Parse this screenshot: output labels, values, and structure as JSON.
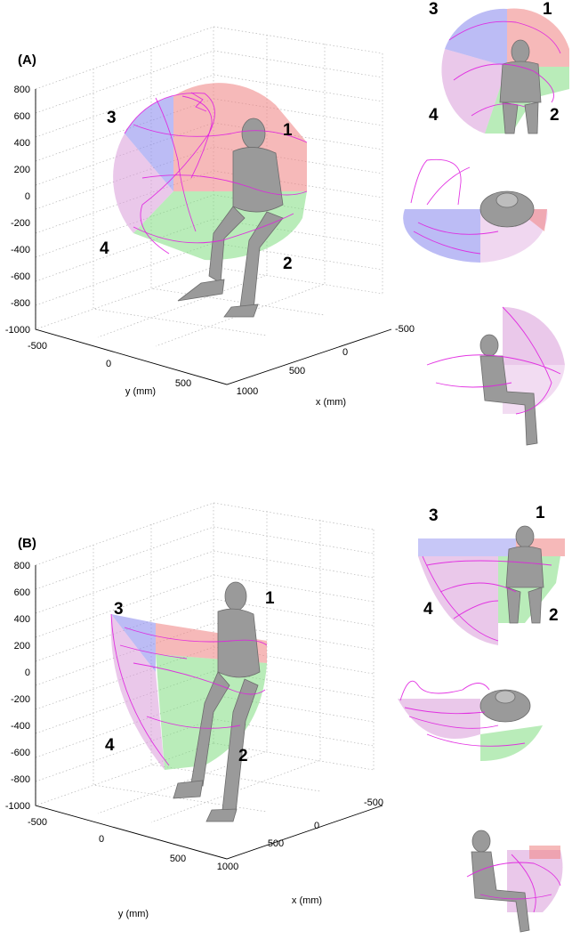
{
  "colors": {
    "quadrant_1": "#f08a8a",
    "quadrant_2": "#7fdc7f",
    "quadrant_3": "#8f8fef",
    "quadrant_4": "#d99ad9",
    "trajectory": "#e020e0",
    "mannequin": "#9a9a9a",
    "grid": "#b5b5b5"
  },
  "panels": [
    {
      "label": "(A)",
      "z_ticks": [
        "800",
        "600",
        "400",
        "200",
        "0",
        "-200",
        "-400",
        "-600",
        "-800",
        "-1000"
      ],
      "y_ticks": [
        "-500",
        "0",
        "500"
      ],
      "x_ticks": [
        "1000",
        "500",
        "0",
        "-500"
      ],
      "y_axis_label": "y (mm)",
      "x_axis_label": "x (mm)",
      "quadrants": [
        "1",
        "2",
        "3",
        "4"
      ],
      "insets": [
        {
          "view": "front",
          "labels": [
            "3",
            "1",
            "4",
            "2"
          ]
        },
        {
          "view": "top"
        },
        {
          "view": "side"
        }
      ]
    },
    {
      "label": "(B)",
      "z_ticks": [
        "800",
        "600",
        "400",
        "200",
        "0",
        "-200",
        "-400",
        "-600",
        "-800",
        "-1000"
      ],
      "y_ticks": [
        "-500",
        "0",
        "500"
      ],
      "x_ticks": [
        "1000",
        "500",
        "0",
        "-500"
      ],
      "y_axis_label": "y (mm)",
      "x_axis_label": "x (mm)",
      "quadrants": [
        "1",
        "2",
        "3",
        "4"
      ],
      "insets": [
        {
          "view": "front",
          "labels": [
            "3",
            "1",
            "4",
            "2"
          ]
        },
        {
          "view": "top"
        },
        {
          "view": "side"
        }
      ]
    }
  ]
}
